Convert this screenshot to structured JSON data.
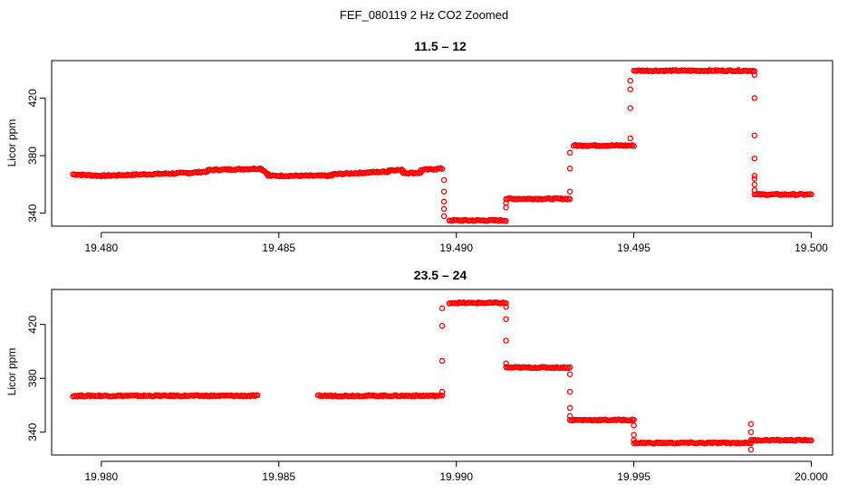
{
  "figure": {
    "title": "FEF_080119  2 Hz CO2 Zoomed",
    "point_color": "#ff0000"
  },
  "chart_data": [
    {
      "type": "scatter",
      "title": "11.5 – 12",
      "xlabel": "",
      "ylabel": "Licor ppm",
      "xlim": [
        19.4786,
        19.5006
      ],
      "ylim": [
        331,
        446
      ],
      "xticks": [
        19.48,
        19.485,
        19.49,
        19.495,
        19.5
      ],
      "xtick_labels": [
        "19.480",
        "19.485",
        "19.490",
        "19.495",
        "19.500"
      ],
      "yticks": [
        340,
        380,
        420
      ],
      "ytick_labels": [
        "340",
        "380",
        "420"
      ],
      "grid": false,
      "segments": [
        {
          "x0": 19.4792,
          "x1": 19.48,
          "y0": 367,
          "y1": 366
        },
        {
          "x0": 19.48,
          "x1": 19.4825,
          "y0": 366,
          "y1": 368
        },
        {
          "x0": 19.4825,
          "x1": 19.483,
          "y0": 368,
          "y1": 369
        },
        {
          "x0": 19.483,
          "x1": 19.4845,
          "y0": 370,
          "y1": 371
        },
        {
          "x0": 19.4845,
          "x1": 19.4847,
          "y0": 371,
          "y1": 367
        },
        {
          "x0": 19.4847,
          "x1": 19.4865,
          "y0": 366,
          "y1": 366
        },
        {
          "x0": 19.4865,
          "x1": 19.4881,
          "y0": 367,
          "y1": 369
        },
        {
          "x0": 19.4881,
          "x1": 19.4885,
          "y0": 370,
          "y1": 370
        },
        {
          "x0": 19.4885,
          "x1": 19.489,
          "y0": 368,
          "y1": 368
        },
        {
          "x0": 19.489,
          "x1": 19.4896,
          "y0": 370,
          "y1": 371
        },
        {
          "x0": 19.4898,
          "x1": 19.4914,
          "y0": 335,
          "y1": 335
        },
        {
          "x0": 19.4914,
          "x1": 19.4932,
          "y0": 350,
          "y1": 350
        },
        {
          "x0": 19.4933,
          "x1": 19.495,
          "y0": 387,
          "y1": 387
        },
        {
          "x0": 19.495,
          "x1": 19.4984,
          "y0": 439,
          "y1": 439
        },
        {
          "x0": 19.4984,
          "x1": 19.5,
          "y0": 353,
          "y1": 353
        }
      ],
      "transitions": [
        {
          "x": 19.48965,
          "y": [
            363,
            355,
            348,
            343,
            338
          ]
        },
        {
          "x": 19.4914,
          "y": [
            344,
            347
          ]
        },
        {
          "x": 19.4932,
          "y": [
            355,
            371,
            382
          ]
        },
        {
          "x": 19.4949,
          "y": [
            392,
            413,
            426,
            432
          ]
        },
        {
          "x": 19.4984,
          "y": [
            436,
            420,
            394,
            378,
            366,
            364,
            360,
            356
          ]
        }
      ]
    },
    {
      "type": "scatter",
      "title": "23.5 – 24",
      "xlabel": "",
      "ylabel": "Licor ppm",
      "xlim": [
        19.9786,
        20.0006
      ],
      "ylim": [
        323,
        446
      ],
      "xticks": [
        19.98,
        19.985,
        19.99,
        19.995,
        20.0
      ],
      "xtick_labels": [
        "19.980",
        "19.985",
        "19.990",
        "19.995",
        "20.000"
      ],
      "yticks": [
        340,
        380,
        420
      ],
      "ytick_labels": [
        "340",
        "380",
        "420"
      ],
      "grid": false,
      "segments": [
        {
          "x0": 19.9792,
          "x1": 19.9844,
          "y0": 367,
          "y1": 367
        },
        {
          "x0": 19.9861,
          "x1": 19.9896,
          "y0": 367,
          "y1": 367
        },
        {
          "x0": 19.9898,
          "x1": 19.9914,
          "y0": 436,
          "y1": 436
        },
        {
          "x0": 19.9914,
          "x1": 19.9932,
          "y0": 388,
          "y1": 388
        },
        {
          "x0": 19.9932,
          "x1": 19.995,
          "y0": 349,
          "y1": 349
        },
        {
          "x0": 19.995,
          "x1": 19.9983,
          "y0": 332,
          "y1": 332
        },
        {
          "x0": 19.9983,
          "x1": 20.0,
          "y0": 334,
          "y1": 334
        }
      ],
      "transitions": [
        {
          "x": 19.9896,
          "y": [
            370,
            393,
            419,
            432
          ]
        },
        {
          "x": 19.9914,
          "y": [
            433,
            424,
            408,
            391
          ]
        },
        {
          "x": 19.9932,
          "y": [
            383,
            370,
            358,
            352
          ]
        },
        {
          "x": 19.995,
          "y": [
            345,
            338,
            334
          ]
        },
        {
          "x": 19.9983,
          "y": [
            346,
            327,
            340
          ]
        }
      ]
    }
  ]
}
